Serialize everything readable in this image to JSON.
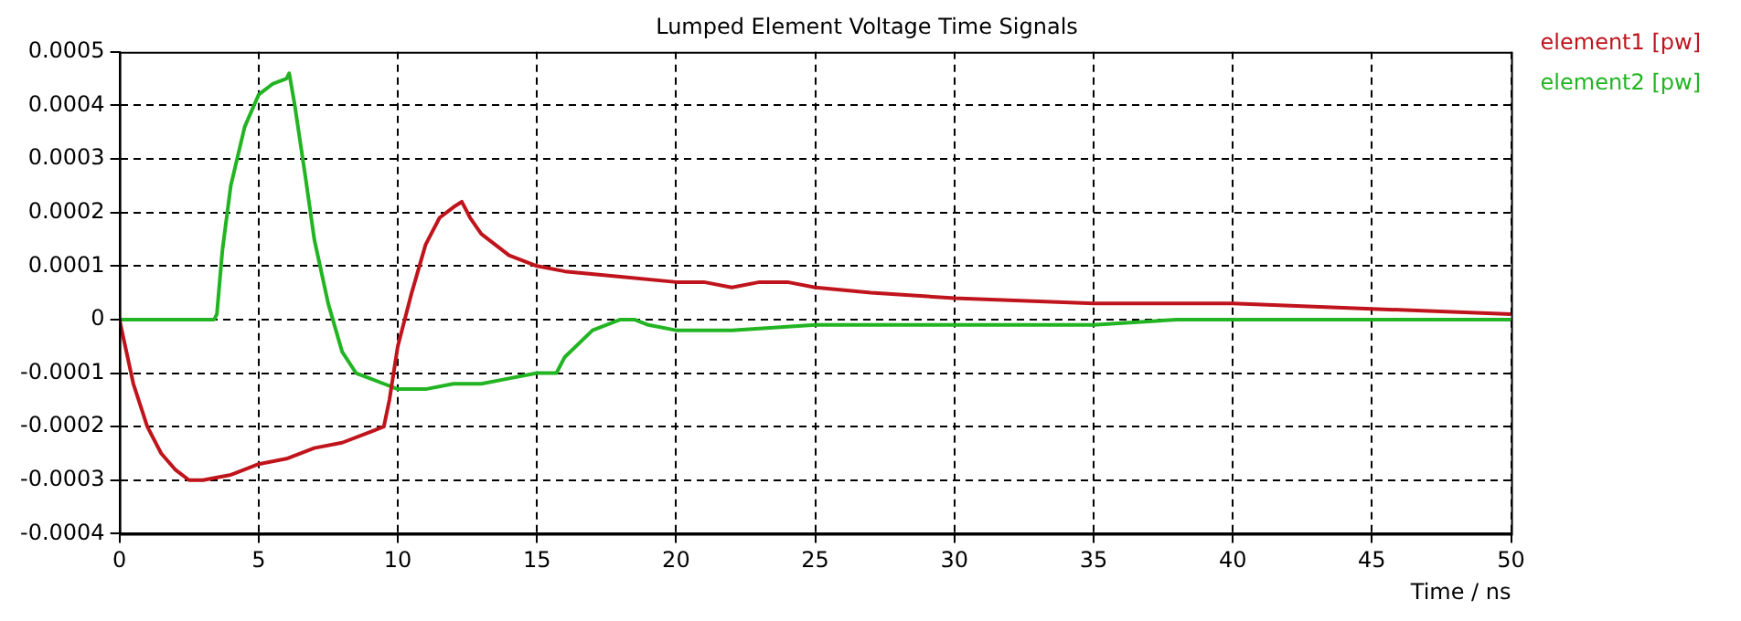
{
  "chart_data": {
    "type": "line",
    "title": "Lumped Element Voltage Time Signals",
    "xlabel": "Time / ns",
    "series": [
      {
        "name": "element1 [pw]",
        "color": "#c0141c",
        "x": [
          0,
          0.5,
          1,
          1.5,
          2,
          2.5,
          3,
          4,
          5,
          6,
          7,
          8,
          9,
          9.5,
          9.7,
          10,
          10.5,
          11,
          11.5,
          12,
          12.3,
          12.6,
          13,
          14,
          15,
          16,
          18,
          20,
          21,
          22,
          23,
          24,
          25,
          27,
          30,
          35,
          40,
          45,
          50
        ],
        "values": [
          0,
          -0.00012,
          -0.0002,
          -0.00025,
          -0.00028,
          -0.0003,
          -0.0003,
          -0.00029,
          -0.00027,
          -0.00026,
          -0.00024,
          -0.00023,
          -0.00021,
          -0.0002,
          -0.00015,
          -5e-05,
          5e-05,
          0.00014,
          0.00019,
          0.00021,
          0.00022,
          0.00019,
          0.00016,
          0.00012,
          0.0001,
          9e-05,
          8e-05,
          7e-05,
          7e-05,
          6e-05,
          7e-05,
          7e-05,
          6e-05,
          5e-05,
          4e-05,
          3e-05,
          3e-05,
          2e-05,
          1e-05
        ]
      },
      {
        "name": "element2 [pw]",
        "color": "#22b422",
        "x": [
          0,
          3.4,
          3.5,
          3.7,
          4,
          4.5,
          5,
          5.5,
          6,
          6.1,
          6.3,
          6.7,
          7,
          7.5,
          8,
          8.5,
          9,
          9.5,
          10,
          11,
          12,
          13,
          14,
          15,
          15.7,
          16,
          17,
          18,
          18.5,
          19,
          20,
          22,
          25,
          28,
          30,
          35,
          38,
          50
        ],
        "values": [
          0,
          0,
          1e-05,
          0.00013,
          0.00025,
          0.00036,
          0.00042,
          0.00044,
          0.00045,
          0.00046,
          0.0004,
          0.00026,
          0.00015,
          3e-05,
          -6e-05,
          -0.0001,
          -0.00011,
          -0.00012,
          -0.00013,
          -0.00013,
          -0.00012,
          -0.00012,
          -0.00011,
          -0.0001,
          -0.0001,
          -7e-05,
          -2e-05,
          0,
          0,
          -1e-05,
          -2e-05,
          -2e-05,
          -1e-05,
          -1e-05,
          -1e-05,
          -1e-05,
          0,
          0
        ]
      }
    ],
    "xlim": [
      0,
      50
    ],
    "xticks": [
      0,
      5,
      10,
      15,
      20,
      25,
      30,
      35,
      40,
      45,
      50
    ],
    "ylim": [
      -0.0004,
      0.0005
    ],
    "yticks": [
      -0.0004,
      -0.0003,
      -0.0002,
      -0.0001,
      0,
      0.0001,
      0.0002,
      0.0003,
      0.0004,
      0.0005
    ],
    "grid": true,
    "legend": "top right",
    "marker": "none",
    "line_style": "solid"
  }
}
